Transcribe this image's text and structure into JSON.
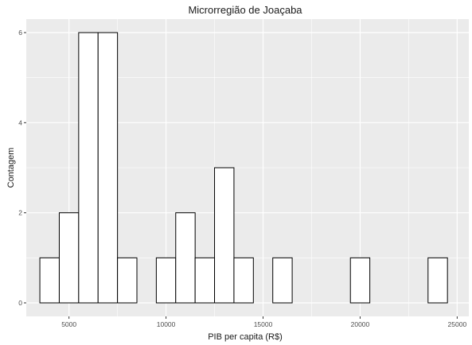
{
  "chart_data": {
    "type": "bar",
    "title": "Microrregião de  Joaçaba",
    "xlabel": "PIB per capita (R$)",
    "ylabel": "Contagem",
    "xlim": [
      2800,
      25600
    ],
    "ylim": [
      -0.3,
      6.3
    ],
    "x_ticks": [
      5000,
      10000,
      15000,
      20000,
      25000
    ],
    "x_tick_labels": [
      "5000",
      "10000",
      "15000",
      "20000",
      "25000"
    ],
    "y_ticks": [
      0,
      2,
      4,
      6
    ],
    "y_tick_labels": [
      "0",
      "2",
      "4",
      "6"
    ],
    "bin_width": 1000,
    "bin_centers": [
      4000,
      5000,
      6000,
      7000,
      8000,
      9000,
      10000,
      11000,
      12000,
      13000,
      14000,
      15000,
      16000,
      17000,
      18000,
      19000,
      20000,
      21000,
      22000,
      23000,
      24000
    ],
    "values": [
      1,
      2,
      6,
      6,
      1,
      0,
      1,
      2,
      1,
      3,
      1,
      0,
      1,
      0,
      0,
      0,
      1,
      0,
      0,
      0,
      1
    ],
    "grid": true,
    "bar_fill": "#ffffff",
    "bar_stroke": "#000000",
    "panel_background": "#ebebeb",
    "grid_color": "#ffffff"
  }
}
